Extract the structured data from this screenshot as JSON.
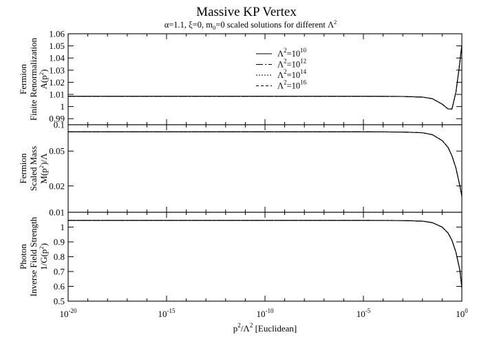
{
  "chart_data": {
    "type": "line",
    "title": "Massive KP Vertex",
    "subtitle": [
      "α=1.1, ξ=0, m",
      "0",
      "=0 scaled solutions for different Λ",
      "2"
    ],
    "xlabel": [
      "p",
      "2",
      "/Λ",
      "2",
      " [Euclidean]"
    ],
    "x_scale": "log",
    "xlim": [
      1e-20,
      1
    ],
    "x_ticks": [
      {
        "value": 1e-20,
        "base": "10",
        "exp": "-20"
      },
      {
        "value": 1e-15,
        "base": "10",
        "exp": "-15"
      },
      {
        "value": 1e-10,
        "base": "10",
        "exp": "-10"
      },
      {
        "value": 1e-05,
        "base": "10",
        "exp": "-5"
      },
      {
        "value": 1,
        "base": "10",
        "exp": "0"
      }
    ],
    "legend": {
      "placement": "top-center (upper panel)",
      "entries": [
        {
          "label": [
            "Λ",
            "2",
            "=10",
            "10"
          ],
          "dash": "solid"
        },
        {
          "label": [
            "Λ",
            "2",
            "=10",
            "12"
          ],
          "dash": "dash-dot"
        },
        {
          "label": [
            "Λ",
            "2",
            "=10",
            "14"
          ],
          "dash": "dotted"
        },
        {
          "label": [
            "Λ",
            "2",
            "=10",
            "16"
          ],
          "dash": "dashed"
        }
      ]
    },
    "panels": [
      {
        "id": "A",
        "ylabel": [
          [
            "Fermion"
          ],
          [
            "Finite Renormalization"
          ],
          [
            "A(p",
            "2",
            ")"
          ]
        ],
        "y_scale": "linear",
        "ylim": [
          0.985,
          1.06
        ],
        "y_ticks": [
          {
            "value": 0.99,
            "label": "0.99"
          },
          {
            "value": 1.0,
            "label": "1"
          },
          {
            "value": 1.01,
            "label": "1.01"
          },
          {
            "value": 1.02,
            "label": "1.02"
          },
          {
            "value": 1.03,
            "label": "1.03"
          },
          {
            "value": 1.04,
            "label": "1.04"
          },
          {
            "value": 1.05,
            "label": "1.05"
          },
          {
            "value": 1.06,
            "label": "1.06"
          }
        ],
        "series": [
          {
            "log10_x": [
              -20,
              -10,
              -5,
              -3,
              -2,
              -1.5,
              -1,
              -0.7,
              -0.5,
              -0.3,
              -0.15,
              0
            ],
            "y": [
              1.0085,
              1.0085,
              1.0085,
              1.0083,
              1.0078,
              1.0065,
              1.002,
              0.998,
              0.998,
              1.012,
              1.03,
              1.051
            ]
          }
        ]
      },
      {
        "id": "M",
        "ylabel": [
          [
            "Fermion"
          ],
          [
            "Scaled Mass"
          ],
          [
            "M(p",
            "2",
            ")/Λ"
          ]
        ],
        "y_scale": "log",
        "ylim": [
          0.01,
          0.1
        ],
        "y_ticks": [
          {
            "value": 0.01,
            "label": "0.01"
          },
          {
            "value": 0.02,
            "label": "0.02"
          },
          {
            "value": 0.05,
            "label": "0.05"
          },
          {
            "value": 0.1,
            "label": "0.1"
          }
        ],
        "series": [
          {
            "log10_x": [
              -20,
              -10,
              -5,
              -3,
              -2,
              -1.5,
              -1,
              -0.7,
              -0.5,
              -0.3,
              -0.1,
              0
            ],
            "y": [
              0.083,
              0.083,
              0.083,
              0.0825,
              0.081,
              0.077,
              0.066,
              0.055,
              0.044,
              0.032,
              0.02,
              0.0152
            ]
          }
        ]
      },
      {
        "id": "G",
        "ylabel": [
          [
            "Photon"
          ],
          [
            "Inverse Field Strength"
          ],
          [
            "1/G(p",
            "2",
            ")"
          ]
        ],
        "y_scale": "linear",
        "ylim": [
          0.5,
          1.1
        ],
        "y_ticks": [
          {
            "value": 0.5,
            "label": "0.5"
          },
          {
            "value": 0.6,
            "label": "0.6"
          },
          {
            "value": 0.7,
            "label": "0.7"
          },
          {
            "value": 0.8,
            "label": "0.8"
          },
          {
            "value": 0.9,
            "label": "0.9"
          },
          {
            "value": 1.0,
            "label": "1"
          }
        ],
        "series": [
          {
            "log10_x": [
              -20,
              -10,
              -5,
              -3,
              -2,
              -1.5,
              -1,
              -0.7,
              -0.5,
              -0.3,
              -0.1,
              0
            ],
            "y": [
              1.045,
              1.045,
              1.045,
              1.044,
              1.04,
              1.03,
              1.0,
              0.96,
              0.91,
              0.83,
              0.71,
              0.59
            ]
          }
        ]
      }
    ]
  }
}
